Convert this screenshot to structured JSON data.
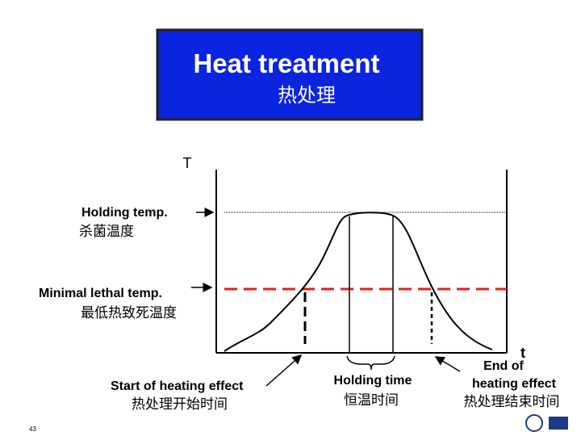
{
  "title": {
    "english": "Heat treatment",
    "chinese": "热处理"
  },
  "axes": {
    "y": "T",
    "x": "t"
  },
  "labels": {
    "holding_temp": {
      "english": "Holding temp.",
      "chinese": "杀菌温度"
    },
    "minimal_lethal_temp": {
      "english": "Minimal lethal temp.",
      "chinese": "最低热致死温度"
    },
    "start_of_heating_effect": {
      "english": "Start of heating effect",
      "chinese": "热处理开始时间"
    },
    "holding_time": {
      "english": "Holding time",
      "chinese": "恒温时间"
    },
    "end_of_heating_effect": {
      "english_line1": "End of",
      "english_line2": "heating effect",
      "chinese": "热处理结束时间"
    }
  },
  "page_number": "43"
}
